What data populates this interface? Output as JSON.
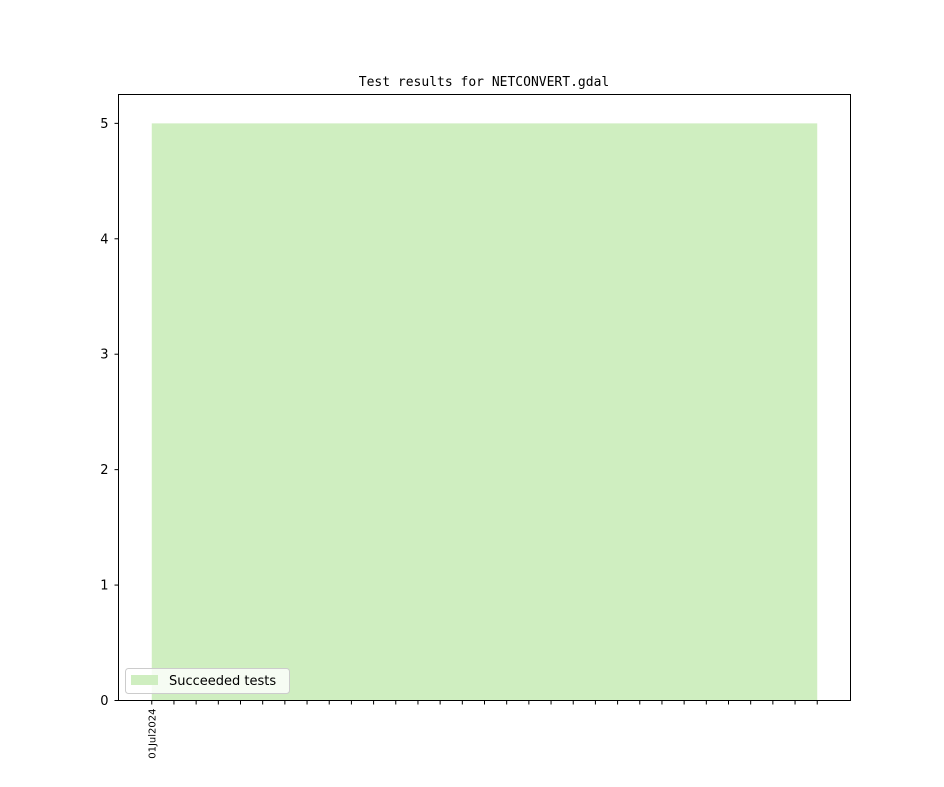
{
  "chart_data": {
    "type": "area",
    "title": "Test results for NETCONVERT.gdal",
    "xlabel": "",
    "ylabel": "",
    "x": [
      "2024-07-01",
      "2024-07-02",
      "2024-07-03",
      "2024-07-04",
      "2024-07-05",
      "2024-07-06",
      "2024-07-07",
      "2024-07-08",
      "2024-07-09",
      "2024-07-10",
      "2024-07-11",
      "2024-07-12",
      "2024-07-13",
      "2024-07-14",
      "2024-07-15",
      "2024-07-16",
      "2024-07-17",
      "2024-07-18",
      "2024-07-19",
      "2024-07-20",
      "2024-07-21",
      "2024-07-22",
      "2024-07-23",
      "2024-07-24",
      "2024-07-25",
      "2024-07-26",
      "2024-07-27",
      "2024-07-28",
      "2024-07-29",
      "2024-07-30",
      "2024-07-31"
    ],
    "series": [
      {
        "name": "Succeeded tests",
        "color": "#cfeec0",
        "values": [
          5,
          5,
          5,
          5,
          5,
          5,
          5,
          5,
          5,
          5,
          5,
          5,
          5,
          5,
          5,
          5,
          5,
          5,
          5,
          5,
          5,
          5,
          5,
          5,
          5,
          5,
          5,
          5,
          5,
          5,
          5
        ]
      }
    ],
    "x_tick_labels": [
      "01Jul2024"
    ],
    "yticks": [
      0,
      1,
      2,
      3,
      4,
      5
    ],
    "ylim": [
      0,
      5.25
    ],
    "xlim": [
      "2024-06-29T12:00",
      "2024-08-01T12:00"
    ],
    "grid": false,
    "legend": "lower-left"
  }
}
